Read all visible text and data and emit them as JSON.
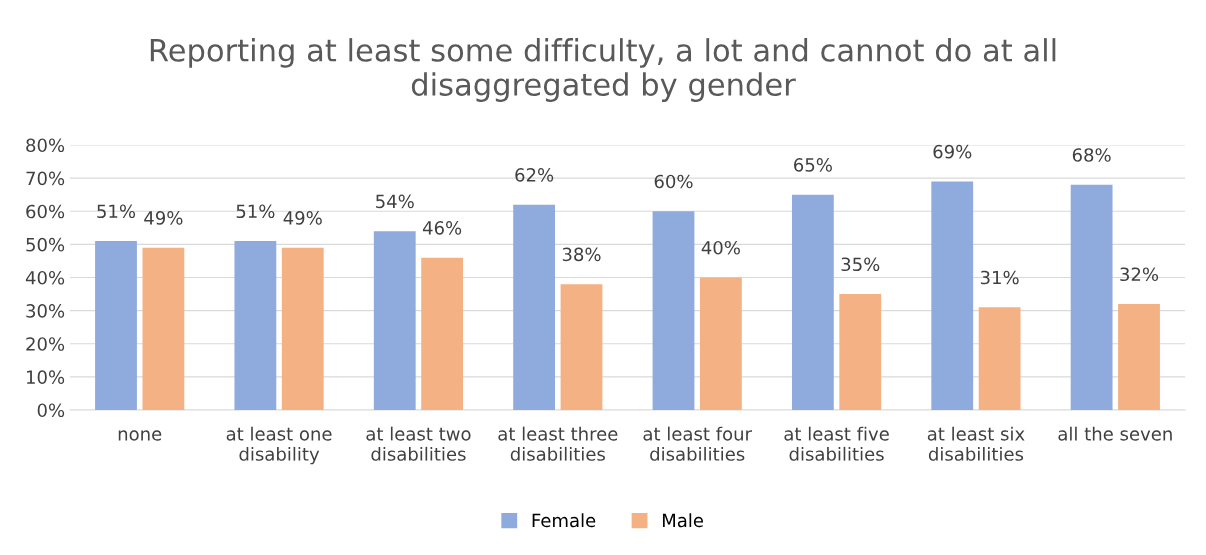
{
  "chart_data": {
    "type": "bar",
    "title": "Reporting at least some difficulty, a lot and cannot do at all\ndisaggregated by gender",
    "categories": [
      "none",
      "at least one\ndisability",
      "at least two\ndisabilities",
      "at least three\ndisabilities",
      "at least four\ndisabilities",
      "at least five\ndisabilities",
      "at least six\ndisabilities",
      "all the seven"
    ],
    "series": [
      {
        "name": "Female",
        "color": "#8faadc",
        "values": [
          51,
          51,
          54,
          62,
          60,
          65,
          69,
          68
        ],
        "value_labels": [
          "51%",
          "51%",
          "54%",
          "62%",
          "60%",
          "65%",
          "69%",
          "68%"
        ]
      },
      {
        "name": "Male",
        "color": "#f4b183",
        "values": [
          49,
          49,
          46,
          38,
          40,
          35,
          31,
          32
        ],
        "value_labels": [
          "49%",
          "49%",
          "46%",
          "38%",
          "40%",
          "35%",
          "31%",
          "32%"
        ]
      }
    ],
    "ylim": [
      0,
      80
    ],
    "yticks": [
      {
        "value": 0,
        "label": "0%"
      },
      {
        "value": 10,
        "label": "10%"
      },
      {
        "value": 20,
        "label": "20%"
      },
      {
        "value": 30,
        "label": "30%"
      },
      {
        "value": 40,
        "label": "40%"
      },
      {
        "value": 50,
        "label": "50%"
      },
      {
        "value": 60,
        "label": "60%"
      },
      {
        "value": 70,
        "label": "70%"
      },
      {
        "value": 80,
        "label": "80%"
      }
    ],
    "grid": "y",
    "legend": "bottom"
  }
}
